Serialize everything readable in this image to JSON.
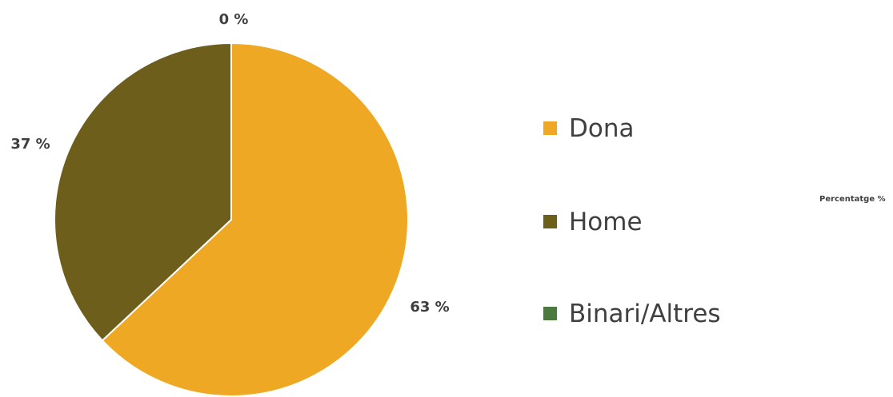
{
  "chart_data": {
    "type": "pie",
    "categories": [
      "Dona",
      "Home",
      "Binari/Altres"
    ],
    "values": [
      63,
      37,
      0
    ],
    "value_labels": [
      "63 %",
      "37 %",
      "0 %"
    ],
    "colors": [
      "#EEA823",
      "#6D5F1B",
      "#4A7A3E"
    ],
    "legend": {
      "placement": "right",
      "entries": [
        "Dona",
        "Home",
        "Binari/Altres"
      ]
    },
    "unit_label": "Percentatge %"
  }
}
